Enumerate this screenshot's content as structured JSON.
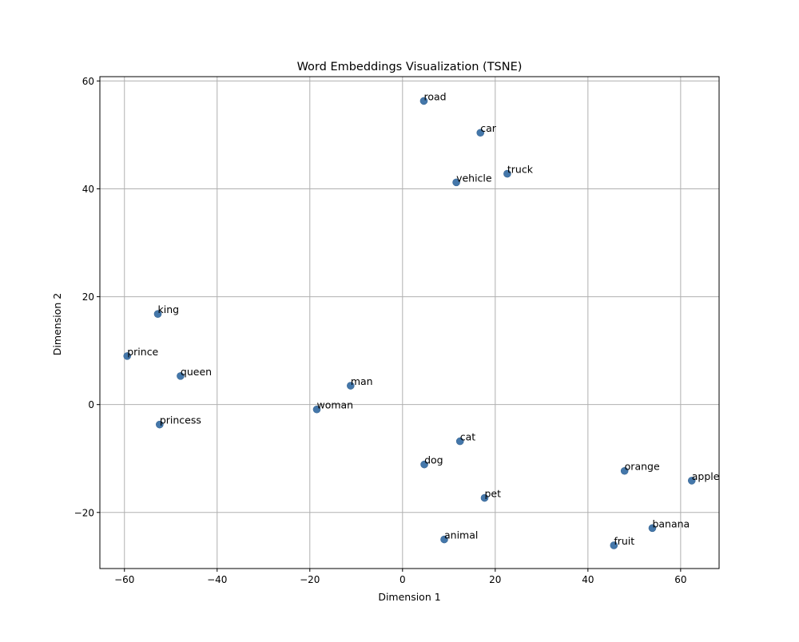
{
  "chart_data": {
    "type": "scatter",
    "title": "Word Embeddings Visualization (TSNE)",
    "xlabel": "Dimension 1",
    "ylabel": "Dimension 2",
    "xlim": [
      -65.3,
      68.3
    ],
    "ylim": [
      -30.4,
      60.8
    ],
    "xticks": [
      -60,
      -40,
      -20,
      0,
      20,
      40,
      60
    ],
    "yticks": [
      -20,
      0,
      20,
      40,
      60
    ],
    "xtick_labels": [
      "−60",
      "−40",
      "−20",
      "0",
      "20",
      "40",
      "60"
    ],
    "ytick_labels": [
      "−20",
      "0",
      "20",
      "40",
      "60"
    ],
    "grid": true,
    "marker_color": "#4477aa",
    "points": [
      {
        "label": "road",
        "x": 4.6,
        "y": 56.3
      },
      {
        "label": "car",
        "x": 16.8,
        "y": 50.4
      },
      {
        "label": "truck",
        "x": 22.6,
        "y": 42.8
      },
      {
        "label": "vehicle",
        "x": 11.6,
        "y": 41.2
      },
      {
        "label": "king",
        "x": -52.8,
        "y": 16.8
      },
      {
        "label": "prince",
        "x": -59.4,
        "y": 9.0
      },
      {
        "label": "queen",
        "x": -47.9,
        "y": 5.3
      },
      {
        "label": "man",
        "x": -11.2,
        "y": 3.5
      },
      {
        "label": "woman",
        "x": -18.5,
        "y": -0.9
      },
      {
        "label": "princess",
        "x": -52.4,
        "y": -3.7
      },
      {
        "label": "cat",
        "x": 12.4,
        "y": -6.8
      },
      {
        "label": "dog",
        "x": 4.7,
        "y": -11.1
      },
      {
        "label": "orange",
        "x": 47.9,
        "y": -12.3
      },
      {
        "label": "apple",
        "x": 62.4,
        "y": -14.1
      },
      {
        "label": "pet",
        "x": 17.7,
        "y": -17.3
      },
      {
        "label": "banana",
        "x": 53.9,
        "y": -22.9
      },
      {
        "label": "animal",
        "x": 9.0,
        "y": -25.0
      },
      {
        "label": "fruit",
        "x": 45.6,
        "y": -26.1
      }
    ]
  }
}
